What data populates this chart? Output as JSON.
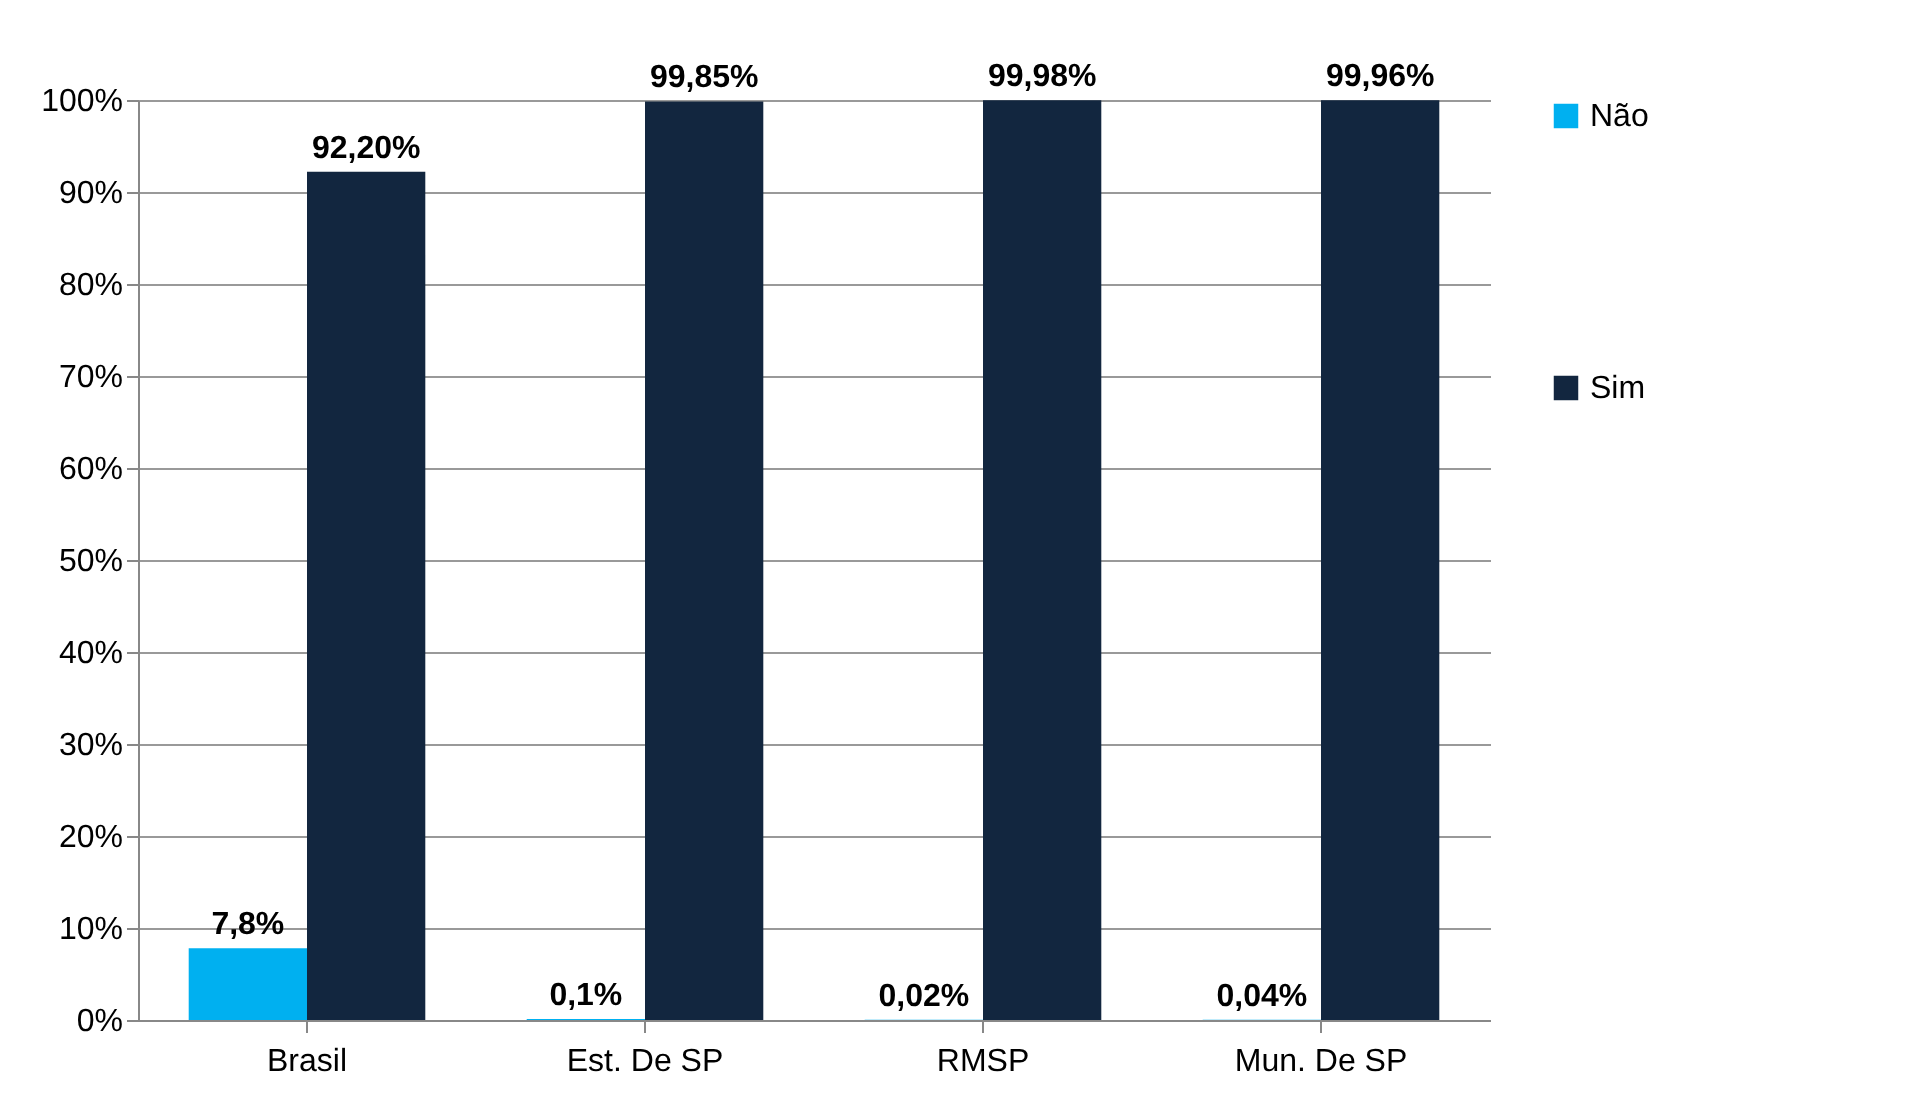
{
  "chart_data": {
    "type": "bar",
    "categories": [
      "Brasil",
      "Est. De SP",
      "RMSP",
      "Mun. De SP"
    ],
    "series": [
      {
        "name": "Não",
        "color": "#00b0f0",
        "values": [
          7.8,
          0.1,
          0.02,
          0.04
        ],
        "value_labels": [
          "7,8%",
          "0,1%",
          "0,02%",
          "0,04%"
        ]
      },
      {
        "name": "Sim",
        "color": "#12263f",
        "values": [
          92.2,
          99.85,
          99.98,
          99.96
        ],
        "value_labels": [
          "92,20%",
          "99,85%",
          "99,98%",
          "99,96%"
        ]
      }
    ],
    "ylim": [
      0,
      100
    ],
    "yticks": [
      {
        "value": 0,
        "label": "0%"
      },
      {
        "value": 10,
        "label": "10%"
      },
      {
        "value": 20,
        "label": "20%"
      },
      {
        "value": 30,
        "label": "30%"
      },
      {
        "value": 40,
        "label": "40%"
      },
      {
        "value": 50,
        "label": "50%"
      },
      {
        "value": 60,
        "label": "60%"
      },
      {
        "value": 70,
        "label": "70%"
      },
      {
        "value": 80,
        "label": "80%"
      },
      {
        "value": 90,
        "label": "90%"
      },
      {
        "value": 100,
        "label": "100%"
      }
    ],
    "grid": "y",
    "legend": "right"
  }
}
